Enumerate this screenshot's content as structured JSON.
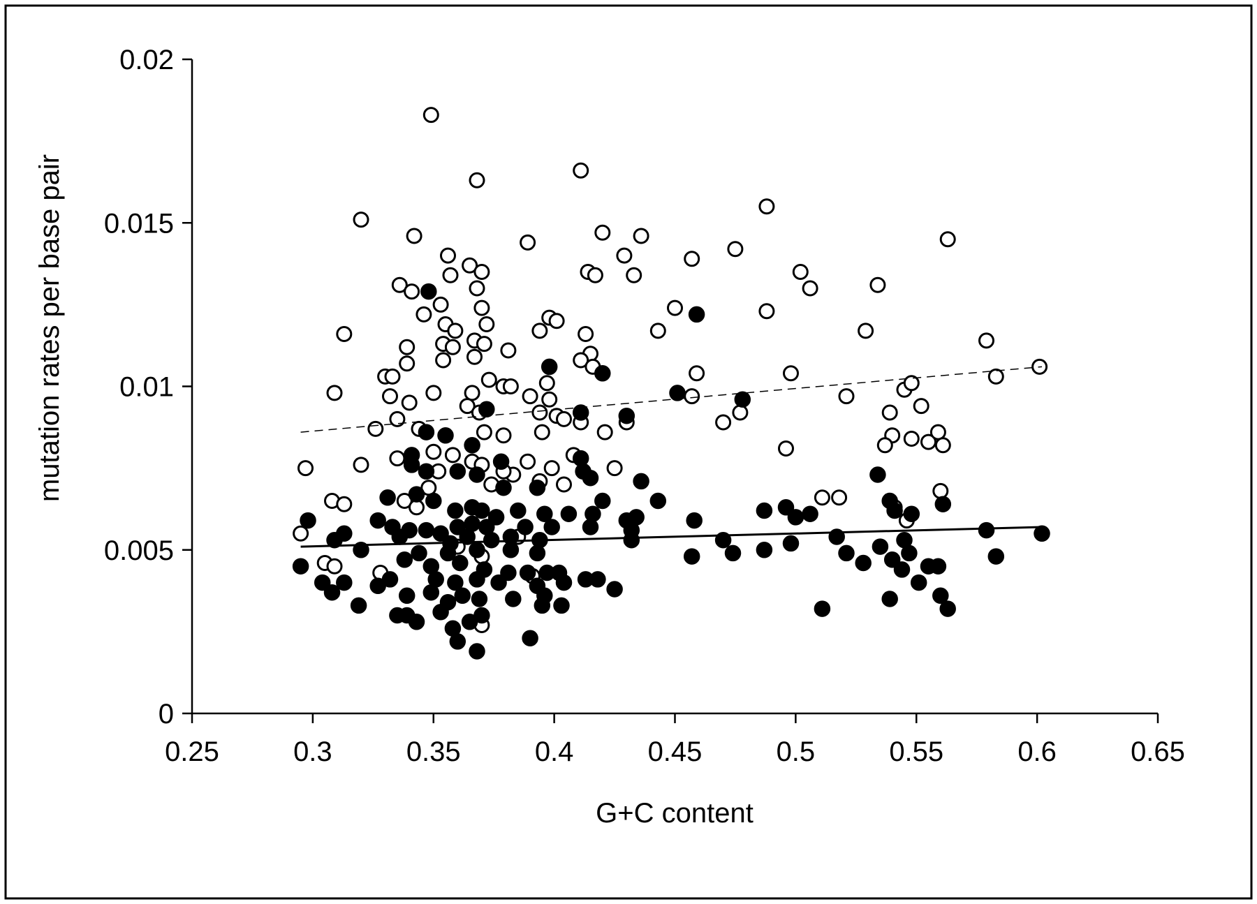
{
  "chart_data": {
    "type": "scatter",
    "title": "",
    "xlabel": "G+C content",
    "ylabel": "mutation rates per base pair",
    "xlim": [
      0.25,
      0.65
    ],
    "ylim": [
      0,
      0.02
    ],
    "x_ticks": [
      "0.25",
      "0.3",
      "0.35",
      "0.4",
      "0.45",
      "0.5",
      "0.55",
      "0.6",
      "0.65"
    ],
    "y_ticks": [
      "0",
      "0.005",
      "0.01",
      "0.015",
      "0.02"
    ],
    "grid": false,
    "legend": "none",
    "series": [
      {
        "marker": "open-circle",
        "trendline": {
          "style": "dashed",
          "x": [
            0.295,
            0.602
          ],
          "y": [
            0.0086,
            0.0106
          ]
        },
        "points": [
          [
            0.349,
            0.0183
          ],
          [
            0.368,
            0.0163
          ],
          [
            0.411,
            0.0166
          ],
          [
            0.32,
            0.0151
          ],
          [
            0.342,
            0.0146
          ],
          [
            0.42,
            0.0147
          ],
          [
            0.436,
            0.0146
          ],
          [
            0.389,
            0.0144
          ],
          [
            0.475,
            0.0142
          ],
          [
            0.488,
            0.0155
          ],
          [
            0.457,
            0.0139
          ],
          [
            0.563,
            0.0145
          ],
          [
            0.356,
            0.014
          ],
          [
            0.365,
            0.0137
          ],
          [
            0.37,
            0.0135
          ],
          [
            0.357,
            0.0134
          ],
          [
            0.414,
            0.0135
          ],
          [
            0.417,
            0.0134
          ],
          [
            0.429,
            0.014
          ],
          [
            0.433,
            0.0134
          ],
          [
            0.502,
            0.0135
          ],
          [
            0.506,
            0.013
          ],
          [
            0.534,
            0.0131
          ],
          [
            0.336,
            0.0131
          ],
          [
            0.341,
            0.0129
          ],
          [
            0.368,
            0.013
          ],
          [
            0.353,
            0.0125
          ],
          [
            0.37,
            0.0124
          ],
          [
            0.346,
            0.0122
          ],
          [
            0.398,
            0.0121
          ],
          [
            0.401,
            0.012
          ],
          [
            0.45,
            0.0124
          ],
          [
            0.488,
            0.0123
          ],
          [
            0.355,
            0.0119
          ],
          [
            0.359,
            0.0117
          ],
          [
            0.372,
            0.0119
          ],
          [
            0.394,
            0.0117
          ],
          [
            0.413,
            0.0116
          ],
          [
            0.443,
            0.0117
          ],
          [
            0.529,
            0.0117
          ],
          [
            0.313,
            0.0116
          ],
          [
            0.354,
            0.0113
          ],
          [
            0.358,
            0.0112
          ],
          [
            0.367,
            0.0114
          ],
          [
            0.371,
            0.0113
          ],
          [
            0.339,
            0.0112
          ],
          [
            0.381,
            0.0111
          ],
          [
            0.415,
            0.011
          ],
          [
            0.579,
            0.0114
          ],
          [
            0.339,
            0.0107
          ],
          [
            0.354,
            0.0108
          ],
          [
            0.367,
            0.0109
          ],
          [
            0.411,
            0.0108
          ],
          [
            0.416,
            0.0106
          ],
          [
            0.459,
            0.0104
          ],
          [
            0.498,
            0.0104
          ],
          [
            0.583,
            0.0103
          ],
          [
            0.601,
            0.0106
          ],
          [
            0.33,
            0.0103
          ],
          [
            0.333,
            0.0103
          ],
          [
            0.373,
            0.0102
          ],
          [
            0.379,
            0.01
          ],
          [
            0.382,
            0.01
          ],
          [
            0.397,
            0.0101
          ],
          [
            0.309,
            0.0098
          ],
          [
            0.332,
            0.0097
          ],
          [
            0.34,
            0.0095
          ],
          [
            0.35,
            0.0098
          ],
          [
            0.366,
            0.0098
          ],
          [
            0.39,
            0.0097
          ],
          [
            0.398,
            0.0096
          ],
          [
            0.457,
            0.0097
          ],
          [
            0.521,
            0.0097
          ],
          [
            0.545,
            0.0099
          ],
          [
            0.548,
            0.0101
          ],
          [
            0.364,
            0.0094
          ],
          [
            0.552,
            0.0094
          ],
          [
            0.335,
            0.009
          ],
          [
            0.369,
            0.0092
          ],
          [
            0.394,
            0.0092
          ],
          [
            0.401,
            0.0091
          ],
          [
            0.404,
            0.009
          ],
          [
            0.411,
            0.0089
          ],
          [
            0.43,
            0.0089
          ],
          [
            0.47,
            0.0089
          ],
          [
            0.477,
            0.0092
          ],
          [
            0.539,
            0.0092
          ],
          [
            0.326,
            0.0087
          ],
          [
            0.344,
            0.0087
          ],
          [
            0.371,
            0.0086
          ],
          [
            0.379,
            0.0085
          ],
          [
            0.395,
            0.0086
          ],
          [
            0.421,
            0.0086
          ],
          [
            0.54,
            0.0085
          ],
          [
            0.537,
            0.0082
          ],
          [
            0.548,
            0.0084
          ],
          [
            0.555,
            0.0083
          ],
          [
            0.559,
            0.0086
          ],
          [
            0.561,
            0.0082
          ],
          [
            0.496,
            0.0081
          ],
          [
            0.35,
            0.008
          ],
          [
            0.358,
            0.0079
          ],
          [
            0.335,
            0.0078
          ],
          [
            0.366,
            0.0077
          ],
          [
            0.37,
            0.0076
          ],
          [
            0.389,
            0.0077
          ],
          [
            0.399,
            0.0075
          ],
          [
            0.408,
            0.0079
          ],
          [
            0.425,
            0.0075
          ],
          [
            0.297,
            0.0075
          ],
          [
            0.32,
            0.0076
          ],
          [
            0.352,
            0.0074
          ],
          [
            0.374,
            0.007
          ],
          [
            0.383,
            0.0073
          ],
          [
            0.379,
            0.0074
          ],
          [
            0.394,
            0.0071
          ],
          [
            0.404,
            0.007
          ],
          [
            0.56,
            0.0068
          ],
          [
            0.348,
            0.0069
          ],
          [
            0.308,
            0.0065
          ],
          [
            0.313,
            0.0064
          ],
          [
            0.338,
            0.0065
          ],
          [
            0.343,
            0.0063
          ],
          [
            0.511,
            0.0066
          ],
          [
            0.518,
            0.0066
          ],
          [
            0.541,
            0.0063
          ],
          [
            0.546,
            0.0059
          ],
          [
            0.295,
            0.0055
          ],
          [
            0.305,
            0.0046
          ],
          [
            0.309,
            0.0045
          ],
          [
            0.328,
            0.0043
          ],
          [
            0.37,
            0.0048
          ],
          [
            0.36,
            0.0051
          ],
          [
            0.385,
            0.0054
          ],
          [
            0.37,
            0.0027
          ],
          [
            0.391,
            0.0042
          ]
        ]
      },
      {
        "marker": "filled-circle",
        "trendline": {
          "style": "solid",
          "x": [
            0.295,
            0.602
          ],
          "y": [
            0.0051,
            0.0057
          ]
        },
        "points": [
          [
            0.348,
            0.0129
          ],
          [
            0.459,
            0.0122
          ],
          [
            0.398,
            0.0106
          ],
          [
            0.42,
            0.0104
          ],
          [
            0.451,
            0.0098
          ],
          [
            0.478,
            0.0096
          ],
          [
            0.372,
            0.0093
          ],
          [
            0.411,
            0.0092
          ],
          [
            0.43,
            0.0091
          ],
          [
            0.347,
            0.0086
          ],
          [
            0.355,
            0.0085
          ],
          [
            0.366,
            0.0082
          ],
          [
            0.341,
            0.0079
          ],
          [
            0.341,
            0.0076
          ],
          [
            0.378,
            0.0077
          ],
          [
            0.411,
            0.0078
          ],
          [
            0.534,
            0.0073
          ],
          [
            0.415,
            0.0072
          ],
          [
            0.436,
            0.0071
          ],
          [
            0.412,
            0.0074
          ],
          [
            0.347,
            0.0074
          ],
          [
            0.36,
            0.0074
          ],
          [
            0.368,
            0.0073
          ],
          [
            0.379,
            0.0069
          ],
          [
            0.393,
            0.0069
          ],
          [
            0.331,
            0.0066
          ],
          [
            0.343,
            0.0067
          ],
          [
            0.35,
            0.0065
          ],
          [
            0.42,
            0.0065
          ],
          [
            0.443,
            0.0065
          ],
          [
            0.539,
            0.0065
          ],
          [
            0.561,
            0.0064
          ],
          [
            0.298,
            0.0059
          ],
          [
            0.327,
            0.0059
          ],
          [
            0.359,
            0.0062
          ],
          [
            0.366,
            0.0063
          ],
          [
            0.37,
            0.0062
          ],
          [
            0.376,
            0.006
          ],
          [
            0.385,
            0.0062
          ],
          [
            0.396,
            0.0061
          ],
          [
            0.406,
            0.0061
          ],
          [
            0.416,
            0.0061
          ],
          [
            0.43,
            0.0059
          ],
          [
            0.434,
            0.006
          ],
          [
            0.458,
            0.0059
          ],
          [
            0.487,
            0.0062
          ],
          [
            0.496,
            0.0063
          ],
          [
            0.5,
            0.006
          ],
          [
            0.506,
            0.0061
          ],
          [
            0.548,
            0.0061
          ],
          [
            0.541,
            0.0062
          ],
          [
            0.333,
            0.0057
          ],
          [
            0.34,
            0.0056
          ],
          [
            0.347,
            0.0056
          ],
          [
            0.353,
            0.0055
          ],
          [
            0.36,
            0.0057
          ],
          [
            0.366,
            0.0058
          ],
          [
            0.372,
            0.0057
          ],
          [
            0.388,
            0.0057
          ],
          [
            0.399,
            0.0057
          ],
          [
            0.415,
            0.0057
          ],
          [
            0.432,
            0.0056
          ],
          [
            0.579,
            0.0056
          ],
          [
            0.602,
            0.0055
          ],
          [
            0.313,
            0.0055
          ],
          [
            0.309,
            0.0053
          ],
          [
            0.336,
            0.0054
          ],
          [
            0.357,
            0.0052
          ],
          [
            0.364,
            0.0054
          ],
          [
            0.374,
            0.0053
          ],
          [
            0.382,
            0.0054
          ],
          [
            0.394,
            0.0053
          ],
          [
            0.432,
            0.0053
          ],
          [
            0.47,
            0.0053
          ],
          [
            0.498,
            0.0052
          ],
          [
            0.517,
            0.0054
          ],
          [
            0.535,
            0.0051
          ],
          [
            0.545,
            0.0053
          ],
          [
            0.32,
            0.005
          ],
          [
            0.344,
            0.0049
          ],
          [
            0.356,
            0.0049
          ],
          [
            0.368,
            0.005
          ],
          [
            0.382,
            0.005
          ],
          [
            0.393,
            0.0049
          ],
          [
            0.457,
            0.0048
          ],
          [
            0.474,
            0.0049
          ],
          [
            0.487,
            0.005
          ],
          [
            0.521,
            0.0049
          ],
          [
            0.54,
            0.0047
          ],
          [
            0.547,
            0.0049
          ],
          [
            0.583,
            0.0048
          ],
          [
            0.295,
            0.0045
          ],
          [
            0.338,
            0.0047
          ],
          [
            0.349,
            0.0045
          ],
          [
            0.361,
            0.0046
          ],
          [
            0.371,
            0.0044
          ],
          [
            0.381,
            0.0043
          ],
          [
            0.389,
            0.0043
          ],
          [
            0.397,
            0.0043
          ],
          [
            0.402,
            0.0043
          ],
          [
            0.528,
            0.0046
          ],
          [
            0.544,
            0.0044
          ],
          [
            0.555,
            0.0045
          ],
          [
            0.559,
            0.0045
          ],
          [
            0.304,
            0.004
          ],
          [
            0.313,
            0.004
          ],
          [
            0.332,
            0.0041
          ],
          [
            0.351,
            0.0041
          ],
          [
            0.359,
            0.004
          ],
          [
            0.368,
            0.0041
          ],
          [
            0.377,
            0.004
          ],
          [
            0.393,
            0.0039
          ],
          [
            0.404,
            0.004
          ],
          [
            0.413,
            0.0041
          ],
          [
            0.418,
            0.0041
          ],
          [
            0.551,
            0.004
          ],
          [
            0.308,
            0.0037
          ],
          [
            0.327,
            0.0039
          ],
          [
            0.339,
            0.0036
          ],
          [
            0.349,
            0.0037
          ],
          [
            0.356,
            0.0034
          ],
          [
            0.362,
            0.0036
          ],
          [
            0.369,
            0.0035
          ],
          [
            0.383,
            0.0035
          ],
          [
            0.396,
            0.0036
          ],
          [
            0.425,
            0.0038
          ],
          [
            0.539,
            0.0035
          ],
          [
            0.56,
            0.0036
          ],
          [
            0.319,
            0.0033
          ],
          [
            0.335,
            0.003
          ],
          [
            0.339,
            0.003
          ],
          [
            0.343,
            0.0028
          ],
          [
            0.353,
            0.0031
          ],
          [
            0.358,
            0.0026
          ],
          [
            0.365,
            0.0028
          ],
          [
            0.37,
            0.003
          ],
          [
            0.395,
            0.0033
          ],
          [
            0.403,
            0.0033
          ],
          [
            0.511,
            0.0032
          ],
          [
            0.563,
            0.0032
          ],
          [
            0.36,
            0.0022
          ],
          [
            0.39,
            0.0023
          ],
          [
            0.368,
            0.0019
          ]
        ]
      }
    ]
  }
}
